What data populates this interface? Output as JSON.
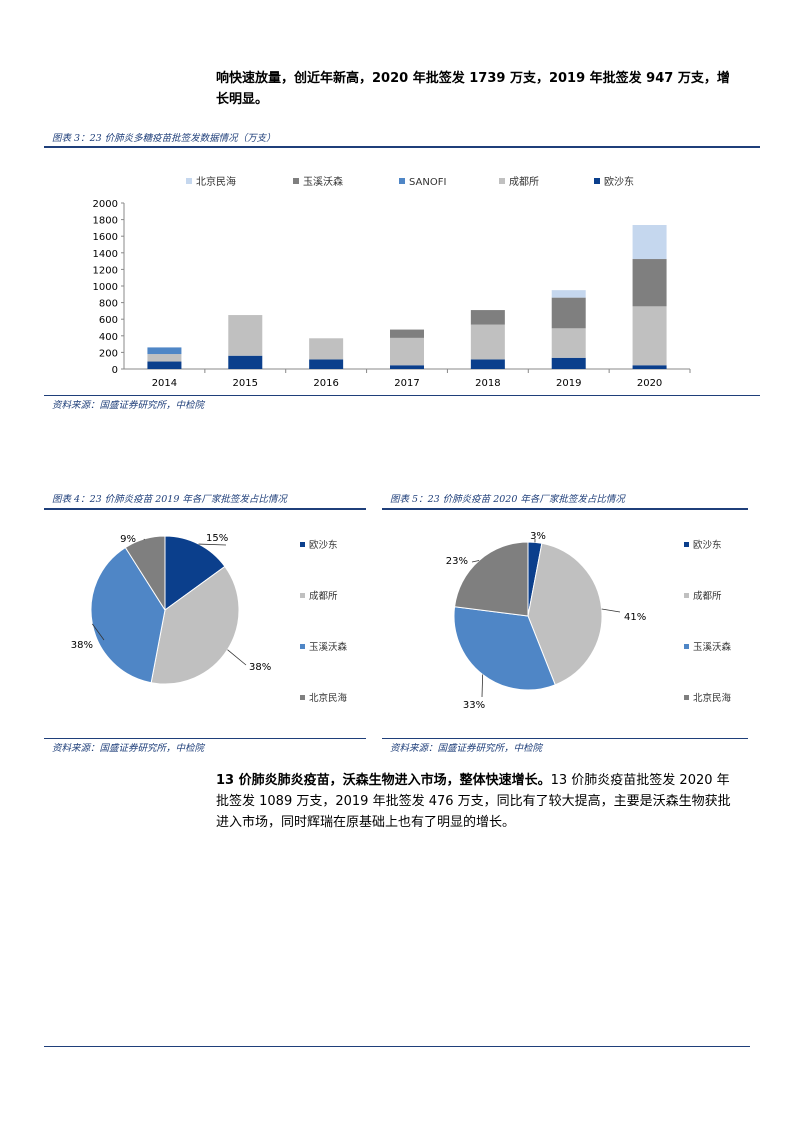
{
  "intro_text": {
    "line1": "响快速放量，创近年新高，2020 年批签发 1739 万支，2019 年批签发 947 万支，增",
    "line2": "长明显。"
  },
  "figure3": {
    "caption": "图表 3：23 价肺炎多糖疫苗批签发数据情况（万支）",
    "source": "资料来源：国盛证券研究所，中检院",
    "chart_data": {
      "type": "bar",
      "stacked": true,
      "categories": [
        "2014",
        "2015",
        "2016",
        "2017",
        "2018",
        "2019",
        "2020"
      ],
      "ylim": [
        0,
        2000
      ],
      "yticks": [
        0,
        200,
        400,
        600,
        800,
        1000,
        1200,
        1400,
        1600,
        1800,
        2000
      ],
      "legend_position": "top",
      "legend": [
        "北京民海",
        "玉溪沃森",
        "SANOFI",
        "成都所",
        "欧沙东"
      ],
      "series": [
        {
          "name": "欧沙东",
          "color": "#0b3f8c",
          "values": [
            90,
            160,
            115,
            45,
            115,
            135,
            45
          ]
        },
        {
          "name": "成都所",
          "color": "#c0c0c0",
          "values": [
            90,
            490,
            255,
            330,
            420,
            355,
            710
          ]
        },
        {
          "name": "SANOFI",
          "color": "#4f86c6",
          "values": [
            80,
            0,
            0,
            0,
            0,
            0,
            0
          ]
        },
        {
          "name": "玉溪沃森",
          "color": "#7f7f7f",
          "values": [
            0,
            0,
            0,
            100,
            175,
            370,
            570
          ]
        },
        {
          "name": "北京民海",
          "color": "#c5d7ee",
          "values": [
            0,
            0,
            0,
            0,
            0,
            90,
            410
          ]
        }
      ]
    }
  },
  "figure4": {
    "caption": "图表 4：23 价肺炎疫苗 2019 年各厂家批签发占比情况",
    "source": "资料来源：国盛证券研究所，中检院",
    "chart_data": {
      "type": "pie",
      "labels": [
        "欧沙东",
        "成都所",
        "玉溪沃森",
        "北京民海"
      ],
      "values": [
        15,
        38,
        38,
        9
      ],
      "value_labels": [
        "15%",
        "38%",
        "38%",
        "9%"
      ],
      "colors": [
        "#0b3f8c",
        "#c0c0c0",
        "#4f86c6",
        "#7f7f7f"
      ],
      "legend_position": "right"
    }
  },
  "figure5": {
    "caption": "图表 5：23 价肺炎疫苗 2020 年各厂家批签发占比情况",
    "source": "资料来源：国盛证券研究所，中检院",
    "chart_data": {
      "type": "pie",
      "labels": [
        "欧沙东",
        "成都所",
        "玉溪沃森",
        "北京民海"
      ],
      "values": [
        3,
        41,
        33,
        23
      ],
      "value_labels": [
        "3%",
        "41%",
        "33%",
        "23%"
      ],
      "colors": [
        "#0b3f8c",
        "#c0c0c0",
        "#4f86c6",
        "#7f7f7f"
      ],
      "legend_position": "right"
    }
  },
  "section": {
    "heading": "13 价肺炎肺炎疫苗，沃森生物进入市场，整体快速增长。",
    "body_line1": "13 价肺炎疫苗批签发 2020 年",
    "body_line2": "批签发 1089 万支，2019 年批签发 476 万支，同比有了较大提高，主要是沃森生物获批",
    "body_line3": "进入市场，同时辉瑞在原基础上也有了明显的增长。"
  }
}
